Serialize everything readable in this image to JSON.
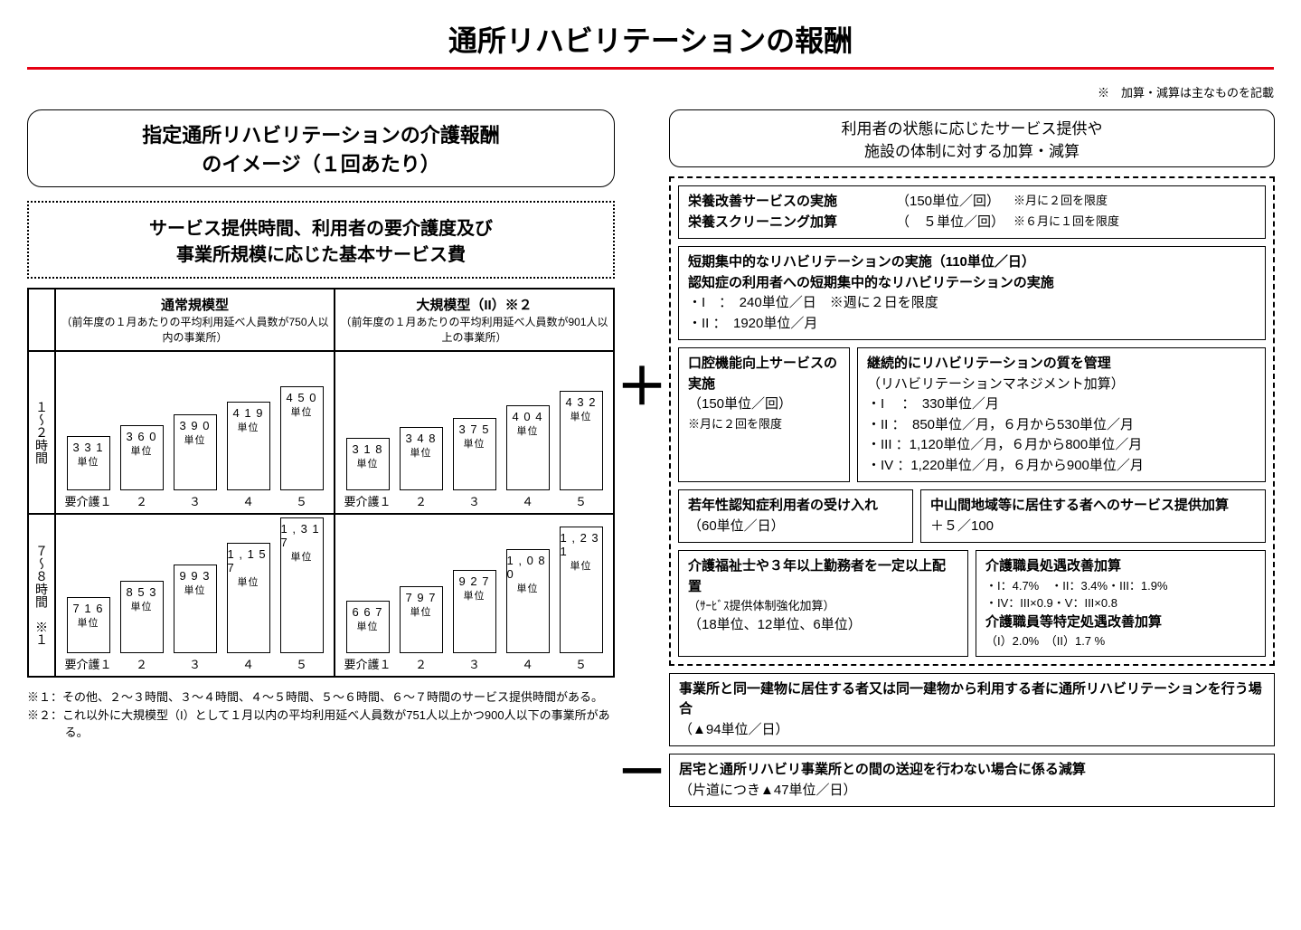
{
  "title": "通所リハビリテーションの報酬",
  "top_note": "※　加算・減算は主なものを記載",
  "left": {
    "heading": "指定通所リハビリテーションの介護報酬\nのイメージ（１回あたり）",
    "sub_heading": "サービス提供時間、利用者の要介護度及び\n事業所規模に応じた基本サービス費",
    "col_headers": [
      {
        "title": "通常規模型",
        "sub": "（前年度の１月あたりの平均利用延べ人員数が750人以内の事業所）"
      },
      {
        "title": "大規模型（II）※２",
        "sub": "（前年度の１月あたりの平均利用延べ人員数が901人以上の事業所）"
      }
    ],
    "row_labels": [
      "１〜２時間",
      "７〜８時間　※１"
    ],
    "x_labels": [
      "要介護１",
      "２",
      "３",
      "４",
      "５"
    ],
    "unit_label": "単位",
    "charts": {
      "r1c1": {
        "values": [
          331,
          360,
          390,
          419,
          450
        ],
        "heights": [
          60,
          72,
          84,
          98,
          115
        ],
        "max_height": 115
      },
      "r1c2": {
        "values": [
          318,
          348,
          375,
          404,
          432
        ],
        "heights": [
          58,
          70,
          80,
          94,
          110
        ],
        "max_height": 110
      },
      "r2c1": {
        "values": [
          716,
          853,
          993,
          1157,
          1317
        ],
        "heights": [
          62,
          80,
          98,
          122,
          150
        ],
        "max_height": 150
      },
      "r2c2": {
        "values": [
          667,
          797,
          927,
          1080,
          1231
        ],
        "heights": [
          58,
          74,
          92,
          115,
          140
        ],
        "max_height": 140
      }
    },
    "footnotes": [
      "※１：その他、２〜３時間、３〜４時間、４〜５時間、５〜６時間、６〜７時間のサービス提供時間がある。",
      "※２：これ以外に大規模型（I）として１月以内の平均利用延べ人員数が751人以上かつ900人以下の事業所がある。"
    ]
  },
  "right": {
    "heading": "利用者の状態に応じたサービス提供や\n施設の体制に対する加算・減算",
    "nutrition": {
      "line1_label": "栄養改善サービスの実施",
      "line1_val": "（150単位／回）",
      "line1_note": "※月に２回を限度",
      "line2_label": "栄養スクリーニング加算",
      "line2_val": "（　５単位／回）",
      "line2_note": "※６月に１回を限度"
    },
    "short_rehab": {
      "l1": "短期集中的なリハビリテーションの実施（110単位／日）",
      "l2": "認知症の利用者への短期集中的なリハビリテーションの実施",
      "l3": "・I　：　240単位／日　※週に２日を限度",
      "l4": "・II ：　1920単位／月"
    },
    "oral": {
      "title": "口腔機能向上サービスの実施",
      "val": "（150単位／回）",
      "note": "※月に２回を限度"
    },
    "quality": {
      "title": "継続的にリハビリテーションの質を管理",
      "sub": "（リハビリテーションマネジメント加算）",
      "l1": "・I　 ：　330単位／月",
      "l2": "・II  ：　850単位／月，６月から530単位／月",
      "l3": "・III ：1,120単位／月，６月から800単位／月",
      "l4": "・IV  ：1,220単位／月，６月から900単位／月"
    },
    "young": {
      "title": "若年性認知症利用者の受け入れ",
      "val": "（60単位／日）"
    },
    "mountain": {
      "title": "中山間地域等に居住する者へのサービス提供加算",
      "val": "＋５／100"
    },
    "staff": {
      "title": "介護福祉士や３年以上勤務者を一定以上配置",
      "sub": "（ｻｰﾋﾞｽ提供体制強化加算）",
      "val": "（18単位、12単位、6単位）"
    },
    "treatment": {
      "title": "介護職員処遇改善加算",
      "l1": "・I：4.7%　・II：3.4%・III：1.9%",
      "l2": "・IV：III×0.9・V：III×0.8",
      "title2": "介護職員等特定処遇改善加算",
      "l3": "（I）2.0%　（II）1.7 %"
    },
    "same_building": {
      "l1": "事業所と同一建物に居住する者又は同一建物から利用する者に通所リハビリテーションを行う場合",
      "val": "（▲94単位／日）"
    },
    "transport": {
      "l1": "居宅と通所リハビリ事業所との間の送迎を行わない場合に係る減算",
      "val": "（片道につき▲47単位／日）"
    }
  },
  "symbols": {
    "plus": "＋",
    "minus": "－"
  }
}
